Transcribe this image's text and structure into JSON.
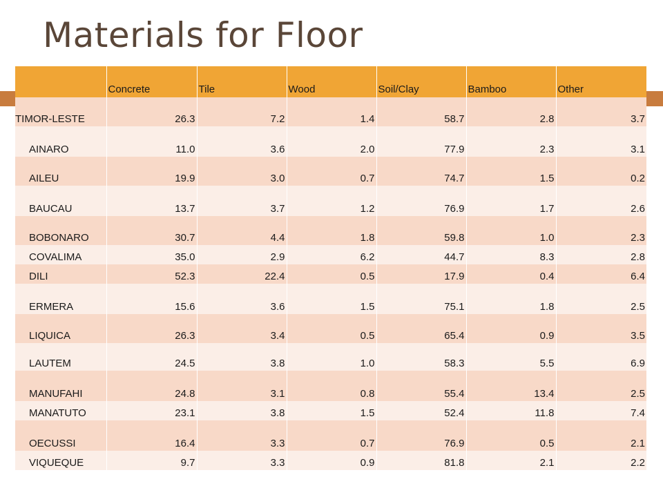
{
  "title": "Materials for Floor",
  "colors": {
    "header": "#f0a535",
    "row_odd": "#f8d9c8",
    "row_even": "#fbeee7",
    "title": "#5a4638",
    "accent": "#c87c3e"
  },
  "table": {
    "headers": [
      "",
      "Concrete",
      "Tile",
      "Wood",
      "Soil/Clay",
      "Bamboo",
      "Other"
    ],
    "rows": [
      {
        "name": "TIMOR-LESTE",
        "values": [
          "26.3",
          "7.2",
          "1.4",
          "58.7",
          "2.8",
          "3.7"
        ]
      },
      {
        "name": "AINARO",
        "values": [
          "11.0",
          "3.6",
          "2.0",
          "77.9",
          "2.3",
          "3.1"
        ]
      },
      {
        "name": "AILEU",
        "values": [
          "19.9",
          "3.0",
          "0.7",
          "74.7",
          "1.5",
          "0.2"
        ]
      },
      {
        "name": "BAUCAU",
        "values": [
          "13.7",
          "3.7",
          "1.2",
          "76.9",
          "1.7",
          "2.6"
        ]
      },
      {
        "name": "BOBONARO",
        "values": [
          "30.7",
          "4.4",
          "1.8",
          "59.8",
          "1.0",
          "2.3"
        ]
      },
      {
        "name": "COVALIMA",
        "values": [
          "35.0",
          "2.9",
          "6.2",
          "44.7",
          "8.3",
          "2.8"
        ]
      },
      {
        "name": "DILI",
        "values": [
          "52.3",
          "22.4",
          "0.5",
          "17.9",
          "0.4",
          "6.4"
        ]
      },
      {
        "name": "ERMERA",
        "values": [
          "15.6",
          "3.6",
          "1.5",
          "75.1",
          "1.8",
          "2.5"
        ]
      },
      {
        "name": "LIQUICA",
        "values": [
          "26.3",
          "3.4",
          "0.5",
          "65.4",
          "0.9",
          "3.5"
        ]
      },
      {
        "name": "LAUTEM",
        "values": [
          "24.5",
          "3.8",
          "1.0",
          "58.3",
          "5.5",
          "6.9"
        ]
      },
      {
        "name": "MANUFAHI",
        "values": [
          "24.8",
          "3.1",
          "0.8",
          "55.4",
          "13.4",
          "2.5"
        ]
      },
      {
        "name": "MANATUTO",
        "values": [
          "23.1",
          "3.8",
          "1.5",
          "52.4",
          "11.8",
          "7.4"
        ]
      },
      {
        "name": "OECUSSI",
        "values": [
          "16.4",
          "3.3",
          "0.7",
          "76.9",
          "0.5",
          "2.1"
        ]
      },
      {
        "name": "VIQUEQUE",
        "values": [
          "9.7",
          "3.3",
          "0.9",
          "81.8",
          "2.1",
          "2.2"
        ]
      }
    ]
  }
}
